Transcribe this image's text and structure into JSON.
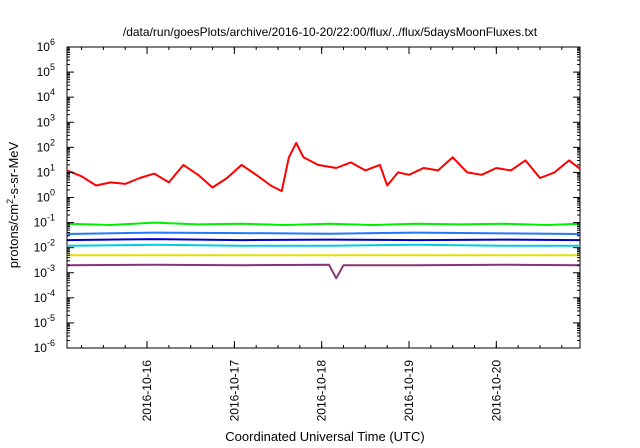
{
  "chart_data": {
    "type": "line",
    "title": "/data/run/goesPlots/archive/2016-10-20/22:00/flux/../flux/5daysMoonFluxes.txt",
    "xlabel": "Coordinated Universal Time (UTC)",
    "ylabel_parts": {
      "pre": "protons/cm",
      "sup": "2",
      "post": "-s-sr-MeV"
    },
    "x_range": [
      "2016-10-15T02:00",
      "2016-10-20T23:00"
    ],
    "x_ticks": [
      "2016-10-16",
      "2016-10-17",
      "2016-10-18",
      "2016-10-19",
      "2016-10-20"
    ],
    "y_scale": "log",
    "ylim": [
      1e-06,
      1000000.0
    ],
    "y_ticks": [
      {
        "value": 1e-06,
        "base": "10",
        "exp": "-6"
      },
      {
        "value": 1e-05,
        "base": "10",
        "exp": "-5"
      },
      {
        "value": 0.0001,
        "base": "10",
        "exp": "-4"
      },
      {
        "value": 0.001,
        "base": "10",
        "exp": "-3"
      },
      {
        "value": 0.01,
        "base": "10",
        "exp": "-2"
      },
      {
        "value": 0.1,
        "base": "10",
        "exp": "-1"
      },
      {
        "value": 1,
        "base": "10",
        "exp": "0"
      },
      {
        "value": 10.0,
        "base": "10",
        "exp": "1"
      },
      {
        "value": 100.0,
        "base": "10",
        "exp": "2"
      },
      {
        "value": 1000.0,
        "base": "10",
        "exp": "3"
      },
      {
        "value": 10000.0,
        "base": "10",
        "exp": "4"
      },
      {
        "value": 100000.0,
        "base": "10",
        "exp": "5"
      },
      {
        "value": 1000000.0,
        "base": "10",
        "exp": "6"
      }
    ],
    "grid": false,
    "series": [
      {
        "color": "#ff0000",
        "points": [
          [
            "2016-10-15T02:00",
            12
          ],
          [
            "2016-10-15T06:00",
            7
          ],
          [
            "2016-10-15T10:00",
            3
          ],
          [
            "2016-10-15T14:00",
            4
          ],
          [
            "2016-10-15T18:00",
            3.5
          ],
          [
            "2016-10-15T22:00",
            6
          ],
          [
            "2016-10-16T02:00",
            9
          ],
          [
            "2016-10-16T06:00",
            4
          ],
          [
            "2016-10-16T10:00",
            20
          ],
          [
            "2016-10-16T14:00",
            8
          ],
          [
            "2016-10-16T18:00",
            2.5
          ],
          [
            "2016-10-16T22:00",
            6
          ],
          [
            "2016-10-17T02:00",
            20
          ],
          [
            "2016-10-17T06:00",
            8
          ],
          [
            "2016-10-17T10:00",
            3
          ],
          [
            "2016-10-17T13:00",
            1.8
          ],
          [
            "2016-10-17T15:00",
            40
          ],
          [
            "2016-10-17T17:00",
            150
          ],
          [
            "2016-10-17T19:00",
            40
          ],
          [
            "2016-10-17T23:00",
            20
          ],
          [
            "2016-10-18T04:00",
            15
          ],
          [
            "2016-10-18T08:00",
            25
          ],
          [
            "2016-10-18T12:00",
            12
          ],
          [
            "2016-10-18T16:00",
            20
          ],
          [
            "2016-10-18T18:00",
            3
          ],
          [
            "2016-10-18T21:00",
            10
          ],
          [
            "2016-10-19T00:00",
            8
          ],
          [
            "2016-10-19T04:00",
            15
          ],
          [
            "2016-10-19T08:00",
            12
          ],
          [
            "2016-10-19T12:00",
            40
          ],
          [
            "2016-10-19T16:00",
            10
          ],
          [
            "2016-10-19T20:00",
            8
          ],
          [
            "2016-10-20T00:00",
            15
          ],
          [
            "2016-10-20T04:00",
            12
          ],
          [
            "2016-10-20T08:00",
            30
          ],
          [
            "2016-10-20T12:00",
            6
          ],
          [
            "2016-10-20T16:00",
            10
          ],
          [
            "2016-10-20T20:00",
            30
          ],
          [
            "2016-10-20T23:00",
            14
          ]
        ]
      },
      {
        "color": "#00ee00",
        "points": [
          [
            "2016-10-15T02:00",
            0.09
          ],
          [
            "2016-10-15T14:00",
            0.08
          ],
          [
            "2016-10-16T02:00",
            0.1
          ],
          [
            "2016-10-16T14:00",
            0.085
          ],
          [
            "2016-10-17T02:00",
            0.09
          ],
          [
            "2016-10-17T14:00",
            0.08
          ],
          [
            "2016-10-18T02:00",
            0.09
          ],
          [
            "2016-10-18T14:00",
            0.08
          ],
          [
            "2016-10-19T02:00",
            0.09
          ],
          [
            "2016-10-19T14:00",
            0.085
          ],
          [
            "2016-10-20T02:00",
            0.09
          ],
          [
            "2016-10-20T14:00",
            0.08
          ],
          [
            "2016-10-20T23:00",
            0.09
          ]
        ]
      },
      {
        "color": "#2277ff",
        "points": [
          [
            "2016-10-15T02:00",
            0.035
          ],
          [
            "2016-10-16T02:00",
            0.04
          ],
          [
            "2016-10-17T02:00",
            0.038
          ],
          [
            "2016-10-18T02:00",
            0.036
          ],
          [
            "2016-10-19T02:00",
            0.04
          ],
          [
            "2016-10-20T02:00",
            0.037
          ],
          [
            "2016-10-20T23:00",
            0.035
          ]
        ]
      },
      {
        "color": "#00ccdd",
        "points": [
          [
            "2016-10-15T02:00",
            0.012
          ],
          [
            "2016-10-16T02:00",
            0.013
          ],
          [
            "2016-10-17T02:00",
            0.012
          ],
          [
            "2016-10-18T02:00",
            0.012
          ],
          [
            "2016-10-19T02:00",
            0.013
          ],
          [
            "2016-10-20T02:00",
            0.012
          ],
          [
            "2016-10-20T23:00",
            0.012
          ]
        ]
      },
      {
        "color": "#0000cc",
        "points": [
          [
            "2016-10-15T02:00",
            0.02
          ],
          [
            "2016-10-16T02:00",
            0.022
          ],
          [
            "2016-10-17T02:00",
            0.02
          ],
          [
            "2016-10-18T02:00",
            0.021
          ],
          [
            "2016-10-19T02:00",
            0.02
          ],
          [
            "2016-10-20T02:00",
            0.021
          ],
          [
            "2016-10-20T23:00",
            0.02
          ]
        ]
      },
      {
        "color": "#e0e000",
        "points": [
          [
            "2016-10-15T02:00",
            0.005
          ],
          [
            "2016-10-16T02:00",
            0.005
          ],
          [
            "2016-10-17T02:00",
            0.005
          ],
          [
            "2016-10-18T02:00",
            0.005
          ],
          [
            "2016-10-19T02:00",
            0.005
          ],
          [
            "2016-10-20T02:00",
            0.005
          ],
          [
            "2016-10-20T23:00",
            0.005
          ]
        ]
      },
      {
        "color": "#883377",
        "points": [
          [
            "2016-10-15T02:00",
            0.002
          ],
          [
            "2016-10-16T02:00",
            0.0021
          ],
          [
            "2016-10-17T02:00",
            0.002
          ],
          [
            "2016-10-18T02:00",
            0.0021
          ],
          [
            "2016-10-18T04:00",
            0.0006
          ],
          [
            "2016-10-18T06:00",
            0.002
          ],
          [
            "2016-10-19T02:00",
            0.002
          ],
          [
            "2016-10-20T02:00",
            0.0021
          ],
          [
            "2016-10-20T23:00",
            0.002
          ]
        ]
      }
    ]
  }
}
